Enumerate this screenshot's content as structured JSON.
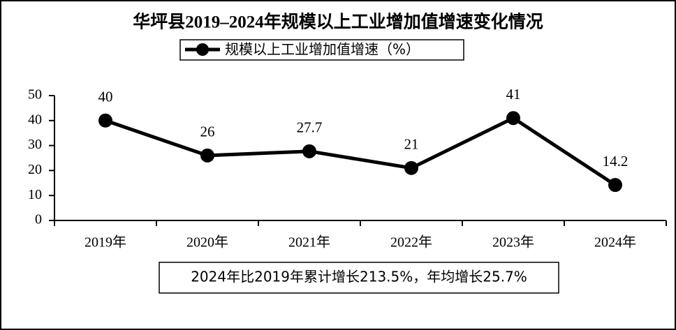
{
  "chart_data": {
    "type": "line",
    "title": "华坪县2019–2024年规模以上工业增加值增速变化情况",
    "categories": [
      "2019年",
      "2020年",
      "2021年",
      "2022年",
      "2023年",
      "2024年"
    ],
    "series": [
      {
        "name": "规模以上工业增加值增速（%）",
        "color": "#000000",
        "values": [
          40,
          26,
          27.7,
          21,
          41,
          14.2
        ]
      }
    ],
    "ylim": [
      0,
      50
    ],
    "yticks": [
      0,
      10,
      20,
      30,
      40,
      50
    ],
    "grid": false,
    "legend": "top",
    "annotation": "2024年比2019年累计增长213.5%，年均增长25.7%"
  }
}
